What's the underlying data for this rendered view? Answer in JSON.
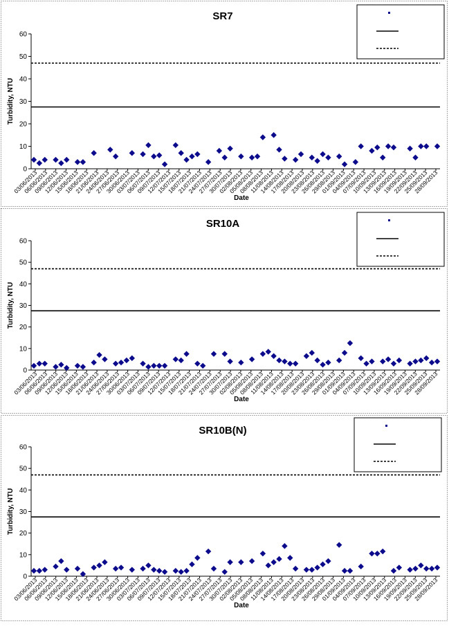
{
  "chart_data": [
    {
      "type": "scatter",
      "title": "SR7",
      "xlabel": "Date",
      "ylabel": "Turbidity, NTU",
      "ylim": [
        0,
        60
      ],
      "yticks": [
        0,
        10,
        20,
        30,
        40,
        50,
        60
      ],
      "xticks": [
        "03/06/2013",
        "06/06/2013",
        "09/06/2013",
        "12/06/2013",
        "15/06/2013",
        "18/06/2013",
        "21/06/2013",
        "24/06/2013",
        "27/06/2013",
        "30/06/2013",
        "03/07/2013",
        "06/07/2013",
        "09/07/2013",
        "12/07/2013",
        "15/07/2013",
        "18/07/2013",
        "21/07/2013",
        "24/07/2013",
        "27/07/2013",
        "30/07/2013",
        "02/08/2013",
        "05/08/2013",
        "08/08/2013",
        "11/08/2013",
        "14/08/2013",
        "17/08/2013",
        "20/08/2013",
        "23/08/2013",
        "26/08/2013",
        "29/08/2013",
        "01/09/2013",
        "04/09/2013",
        "07/09/2013",
        "10/09/2013",
        "13/09/2013",
        "16/09/2013",
        "19/09/2013",
        "22/09/2013",
        "25/09/2013",
        "28/09/2013"
      ],
      "grid": false,
      "legend_position": "top-right",
      "series": [
        {
          "color": "#0b0b8c",
          "marker": "diamond",
          "x": [
            0,
            1,
            2,
            4,
            5,
            6,
            8,
            9,
            11,
            14,
            15,
            18,
            20,
            21,
            22,
            23,
            24,
            26,
            27,
            28,
            29,
            30,
            32,
            34,
            35,
            36,
            38,
            40,
            41,
            42,
            44,
            45,
            46,
            48,
            49,
            51,
            52,
            53,
            54,
            56,
            57,
            59,
            60,
            62,
            63,
            64,
            65,
            66,
            69,
            70,
            71,
            72,
            74
          ],
          "y": [
            4,
            2.5,
            4,
            4,
            2.5,
            4,
            3,
            3,
            7,
            8.5,
            5.5,
            7,
            6.5,
            10.5,
            5.5,
            6,
            2,
            10.5,
            7,
            4,
            5.5,
            6.5,
            3,
            8,
            5,
            9,
            5.5,
            5,
            5.5,
            14,
            15,
            8.5,
            4.5,
            4,
            6.5,
            5,
            3.5,
            6.5,
            5,
            5.5,
            2,
            3,
            10,
            8,
            9.5,
            5,
            10,
            9.5,
            9,
            5,
            10,
            10,
            10
          ]
        }
      ],
      "hlines": [
        {
          "y": 27.5,
          "style": "solid",
          "color": "#000000"
        },
        {
          "y": 47,
          "style": "dashed",
          "color": "#000000"
        }
      ]
    },
    {
      "type": "scatter",
      "title": "SR10A",
      "xlabel": "Date",
      "ylabel": "Turbidity, NTU",
      "ylim": [
        0,
        60
      ],
      "yticks": [
        0,
        10,
        20,
        30,
        40,
        50,
        60
      ],
      "xticks": [
        "03/06/2013",
        "06/06/2013",
        "09/06/2013",
        "12/06/2013",
        "15/06/2013",
        "18/06/2013",
        "21/06/2013",
        "24/06/2013",
        "27/06/2013",
        "30/06/2013",
        "03/07/2013",
        "06/07/2013",
        "09/07/2013",
        "12/07/2013",
        "15/07/2013",
        "18/07/2013",
        "21/07/2013",
        "24/07/2013",
        "27/07/2013",
        "30/07/2013",
        "02/08/2013",
        "05/08/2013",
        "08/08/2013",
        "11/08/2013",
        "14/08/2013",
        "17/08/2013",
        "20/08/2013",
        "23/08/2013",
        "26/08/2013",
        "29/08/2013",
        "01/09/2013",
        "04/09/2013",
        "07/09/2013",
        "10/09/2013",
        "13/09/2013",
        "16/09/2013",
        "19/09/2013",
        "22/09/2013",
        "25/09/2013",
        "28/09/2013"
      ],
      "grid": false,
      "legend_position": "top-right",
      "series": [
        {
          "color": "#0b0b8c",
          "marker": "diamond",
          "x": [
            0,
            1,
            2,
            4,
            5,
            6,
            8,
            9,
            11,
            12,
            13,
            15,
            16,
            17,
            18,
            20,
            21,
            22,
            23,
            24,
            26,
            27,
            28,
            30,
            31,
            33,
            35,
            36,
            38,
            40,
            42,
            43,
            44,
            45,
            46,
            47,
            48,
            50,
            51,
            52,
            53,
            54,
            56,
            57,
            58,
            60,
            61,
            62,
            64,
            65,
            66,
            67,
            69,
            70,
            71,
            72,
            73,
            74
          ],
          "y": [
            2,
            3,
            3,
            1.5,
            2.5,
            1,
            2,
            1.5,
            3.5,
            7,
            5,
            3,
            3.5,
            4.5,
            5.5,
            3,
            1.5,
            2,
            2,
            2,
            5,
            4.5,
            7.5,
            3,
            2,
            7.5,
            7.5,
            4,
            3.5,
            5,
            7.5,
            8.5,
            6.5,
            4.5,
            4,
            3,
            3,
            6.5,
            8,
            4.5,
            2.5,
            3.5,
            4.5,
            8,
            12.5,
            5.5,
            3,
            4,
            4,
            5,
            3,
            4.5,
            3,
            4,
            4.5,
            5.5,
            3.5,
            4
          ]
        }
      ],
      "hlines": [
        {
          "y": 27.5,
          "style": "solid",
          "color": "#000000"
        },
        {
          "y": 47,
          "style": "dashed",
          "color": "#000000"
        }
      ]
    },
    {
      "type": "scatter",
      "title": "SR10B(N)",
      "xlabel": "Date",
      "ylabel": "Turbidity, NTU",
      "ylim": [
        0,
        60
      ],
      "yticks": [
        0,
        10,
        20,
        30,
        40,
        50,
        60
      ],
      "xticks": [
        "03/06/2013",
        "06/06/2013",
        "09/06/2013",
        "12/06/2013",
        "15/06/2013",
        "18/06/2013",
        "21/06/2013",
        "24/06/2013",
        "27/06/2013",
        "30/06/2013",
        "03/07/2013",
        "06/07/2013",
        "09/07/2013",
        "12/07/2013",
        "15/07/2013",
        "18/07/2013",
        "21/07/2013",
        "24/07/2013",
        "27/07/2013",
        "30/07/2013",
        "02/08/2013",
        "05/08/2013",
        "08/08/2013",
        "11/08/2013",
        "14/08/2013",
        "17/08/2013",
        "20/08/2013",
        "23/08/2013",
        "26/08/2013",
        "29/08/2013",
        "01/09/2013",
        "04/09/2013",
        "07/09/2013",
        "10/09/2013",
        "13/09/2013",
        "16/09/2013",
        "19/09/2013",
        "22/09/2013",
        "25/09/2013",
        "28/09/2013"
      ],
      "grid": false,
      "legend_position": "top-right",
      "series": [
        {
          "color": "#0b0b8c",
          "marker": "diamond",
          "x": [
            0,
            1,
            2,
            4,
            5,
            6,
            8,
            9,
            11,
            12,
            13,
            15,
            16,
            18,
            20,
            21,
            22,
            23,
            24,
            26,
            27,
            28,
            29,
            30,
            32,
            33,
            35,
            36,
            38,
            40,
            42,
            43,
            44,
            45,
            46,
            47,
            48,
            50,
            51,
            52,
            53,
            54,
            56,
            57,
            58,
            60,
            62,
            63,
            64,
            66,
            67,
            69,
            70,
            71,
            72,
            73,
            74
          ],
          "y": [
            2.5,
            2.5,
            3,
            4.5,
            7,
            3,
            3.5,
            1,
            4,
            5,
            6.5,
            3.5,
            4,
            3,
            3.5,
            5,
            3,
            2.5,
            2,
            2.5,
            2,
            2.5,
            5.5,
            8.5,
            11.5,
            3.5,
            2,
            6.5,
            6.5,
            7,
            10.5,
            5,
            6.5,
            8,
            14,
            8.5,
            3.5,
            3,
            3,
            4,
            5.5,
            7,
            14.5,
            2.5,
            2.5,
            4.5,
            10.5,
            10.5,
            11.5,
            2.5,
            4,
            3,
            3.5,
            5,
            3.5,
            3.5,
            4
          ]
        }
      ],
      "hlines": [
        {
          "y": 27.5,
          "style": "solid",
          "color": "#000000"
        },
        {
          "y": 47,
          "style": "dashed",
          "color": "#000000"
        }
      ]
    }
  ]
}
